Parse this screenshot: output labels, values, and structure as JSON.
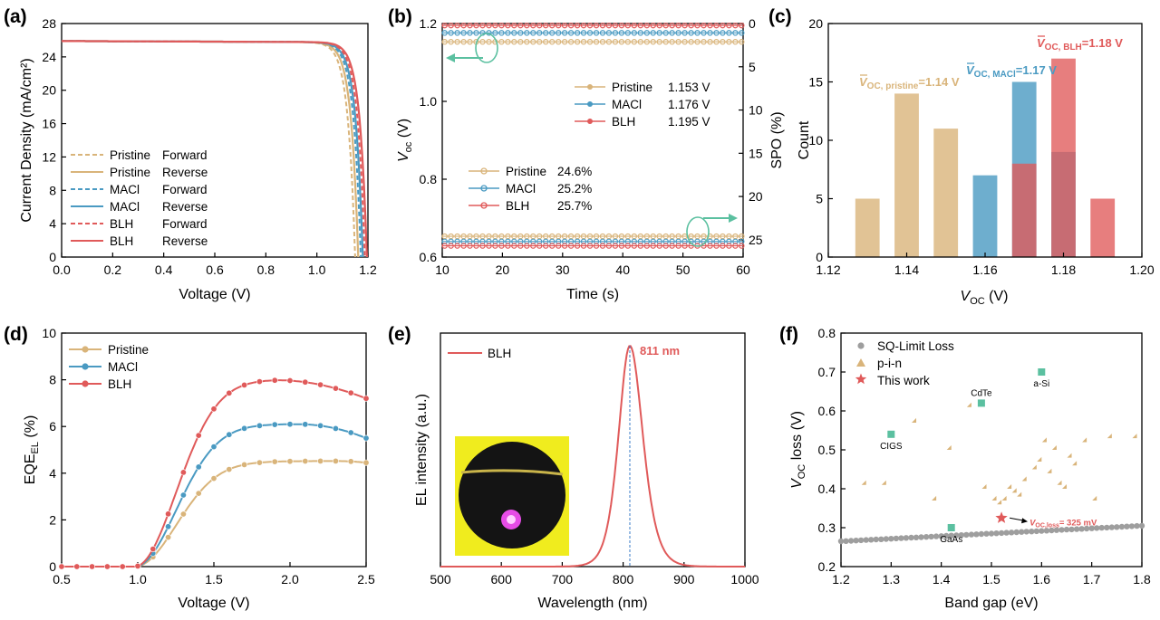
{
  "colors": {
    "pristine": "#D9B47A",
    "maci": "#4A9AC2",
    "blh": "#E05A5A",
    "green": "#5BC0A0",
    "gray": "#9E9E9E",
    "inset_bg": "#F0EC1E"
  },
  "panels": [
    {
      "letter": "(a)"
    },
    {
      "letter": "(b)"
    },
    {
      "letter": "(c)"
    },
    {
      "letter": "(d)"
    },
    {
      "letter": "(e)"
    },
    {
      "letter": "(f)"
    }
  ],
  "chart_data": [
    {
      "id": "a",
      "type": "line",
      "xlabel": "Voltage (V)",
      "ylabel": "Current Density (mA/cm²)",
      "xlim": [
        0,
        1.2
      ],
      "ylim": [
        0,
        28
      ],
      "xticks": [
        "0.0",
        "0.2",
        "0.4",
        "0.6",
        "0.8",
        "1.0",
        "1.2"
      ],
      "yticks": [
        "0",
        "4",
        "8",
        "12",
        "16",
        "20",
        "24",
        "28"
      ],
      "legend": "bottom-left",
      "series": [
        {
          "name": "Pristine",
          "scan": "Forward",
          "style": "dashed",
          "color": "#D9B47A",
          "jsc": 25.9,
          "voc": 1.15
        },
        {
          "name": "Pristine",
          "scan": "Reverse",
          "style": "solid",
          "color": "#D9B47A",
          "jsc": 25.9,
          "voc": 1.162
        },
        {
          "name": "MACl",
          "scan": "Forward",
          "style": "dashed",
          "color": "#4A9AC2",
          "jsc": 25.9,
          "voc": 1.172
        },
        {
          "name": "MACl",
          "scan": "Reverse",
          "style": "solid",
          "color": "#4A9AC2",
          "jsc": 25.9,
          "voc": 1.18
        },
        {
          "name": "BLH",
          "scan": "Forward",
          "style": "dashed",
          "color": "#E05A5A",
          "jsc": 25.9,
          "voc": 1.188
        },
        {
          "name": "BLH",
          "scan": "Reverse",
          "style": "solid",
          "color": "#E05A5A",
          "jsc": 25.9,
          "voc": 1.196
        }
      ]
    },
    {
      "id": "b",
      "type": "scatter",
      "xlabel": "Time (s)",
      "ylabel": "V",
      "ylabel_sub": "oc",
      "ylabel_unit": " (V)",
      "y2label": "SPO (%)",
      "xlim": [
        10,
        60
      ],
      "ylim": [
        0.6,
        1.2
      ],
      "y2lim": [
        0,
        27
      ],
      "xticks": [
        "10",
        "20",
        "30",
        "40",
        "50",
        "60"
      ],
      "yticks": [
        "0.6",
        "0.8",
        "1.0",
        "1.2"
      ],
      "y2ticks": [
        "0",
        "5",
        "10",
        "15",
        "20",
        "25"
      ],
      "voc_series": [
        {
          "name": "Pristine",
          "value": 1.153,
          "label": "1.153 V",
          "color": "#D9B47A"
        },
        {
          "name": "MACl",
          "value": 1.176,
          "label": "1.176 V",
          "color": "#4A9AC2"
        },
        {
          "name": "BLH",
          "value": 1.195,
          "label": "1.195 V",
          "color": "#E05A5A"
        }
      ],
      "spo_series": [
        {
          "name": "Pristine",
          "value": 24.6,
          "label": "24.6%",
          "color": "#D9B47A"
        },
        {
          "name": "MACl",
          "value": 25.2,
          "label": "25.2%",
          "color": "#4A9AC2"
        },
        {
          "name": "BLH",
          "value": 25.7,
          "label": "25.7%",
          "color": "#E05A5A"
        }
      ]
    },
    {
      "id": "c",
      "type": "bar",
      "xlabel": "V",
      "xlabel_sub": "OC",
      "xlabel_unit": " (V)",
      "ylabel": "Count",
      "xlim": [
        1.12,
        1.2
      ],
      "ylim": [
        0,
        20
      ],
      "xticks": [
        "1.12",
        "1.14",
        "1.16",
        "1.18",
        "1.20"
      ],
      "yticks": [
        "0",
        "5",
        "10",
        "15",
        "20"
      ],
      "series": [
        {
          "name": "Pristine",
          "color": "#D9B47A",
          "bins": [
            1.13,
            1.14,
            1.15
          ],
          "counts": [
            5,
            14,
            11
          ]
        },
        {
          "name": "MACl",
          "color": "#4A9AC2",
          "bins": [
            1.16,
            1.17,
            1.18
          ],
          "counts": [
            7,
            15,
            9
          ]
        },
        {
          "name": "BLH",
          "color": "#E05A5A",
          "bins": [
            1.17,
            1.18,
            1.19
          ],
          "counts": [
            8,
            17,
            5
          ]
        }
      ],
      "annotations": [
        {
          "main": "V",
          "sub": "OC, pristine",
          "value": "=1.14 V",
          "color": "#D9B47A"
        },
        {
          "main": "V",
          "sub": "OC, MACl",
          "value": "=1.17 V",
          "color": "#4A9AC2"
        },
        {
          "main": "V",
          "sub": "OC, BLH",
          "value": "=1.18 V",
          "color": "#E05A5A"
        }
      ]
    },
    {
      "id": "d",
      "type": "line",
      "xlabel": "Voltage (V)",
      "ylabel": "EQE",
      "ylabel_sub": "EL",
      "ylabel_unit": " (%)",
      "xlim": [
        0.5,
        2.5
      ],
      "ylim": [
        0,
        10
      ],
      "xticks": [
        "0.5",
        "1.0",
        "1.5",
        "2.0",
        "2.5"
      ],
      "yticks": [
        "0",
        "2",
        "4",
        "6",
        "8",
        "10"
      ],
      "legend": "top-left",
      "series": [
        {
          "name": "Pristine",
          "color": "#D9B47A",
          "peak": 4.52,
          "peak_v": 2.3,
          "onset": 0.98,
          "end": 4.45
        },
        {
          "name": "MACl",
          "color": "#4A9AC2",
          "peak": 6.1,
          "peak_v": 2.05,
          "onset": 0.98,
          "end": 5.5
        },
        {
          "name": "BLH",
          "color": "#E05A5A",
          "peak": 8.0,
          "peak_v": 1.88,
          "onset": 0.98,
          "end": 7.2
        }
      ]
    },
    {
      "id": "e",
      "type": "line",
      "xlabel": "Wavelength (nm)",
      "ylabel": "EL intensity (a.u.)",
      "xlim": [
        500,
        1000
      ],
      "xticks": [
        "500",
        "600",
        "700",
        "800",
        "900",
        "1000"
      ],
      "legend": "top-left",
      "series": [
        {
          "name": "BLH",
          "color": "#E05A5A",
          "peak_nm": 811
        }
      ],
      "peak_label": "811 nm"
    },
    {
      "id": "f",
      "type": "scatter",
      "xlabel": "Band gap (eV)",
      "ylabel": "V",
      "ylabel_sub": "OC",
      "ylabel_unit": " loss (V)",
      "xlim": [
        1.2,
        1.8
      ],
      "ylim": [
        0.2,
        0.8
      ],
      "xticks": [
        "1.2",
        "1.3",
        "1.4",
        "1.5",
        "1.6",
        "1.7",
        "1.8"
      ],
      "yticks": [
        "0.2",
        "0.3",
        "0.4",
        "0.5",
        "0.6",
        "0.7",
        "0.8"
      ],
      "legend": "top-left",
      "sq_label": "SQ-Limit Loss",
      "sq_line": {
        "x": [
          1.2,
          1.8
        ],
        "y": [
          0.265,
          0.305
        ]
      },
      "pin_label": "p-i-n",
      "pin_points": [
        [
          1.25,
          0.41
        ],
        [
          1.29,
          0.41
        ],
        [
          1.35,
          0.57
        ],
        [
          1.39,
          0.37
        ],
        [
          1.42,
          0.5
        ],
        [
          1.46,
          0.61
        ],
        [
          1.49,
          0.4
        ],
        [
          1.51,
          0.37
        ],
        [
          1.52,
          0.36
        ],
        [
          1.53,
          0.37
        ],
        [
          1.54,
          0.4
        ],
        [
          1.55,
          0.39
        ],
        [
          1.56,
          0.38
        ],
        [
          1.57,
          0.42
        ],
        [
          1.59,
          0.45
        ],
        [
          1.6,
          0.47
        ],
        [
          1.61,
          0.52
        ],
        [
          1.62,
          0.44
        ],
        [
          1.63,
          0.5
        ],
        [
          1.64,
          0.41
        ],
        [
          1.65,
          0.4
        ],
        [
          1.66,
          0.48
        ],
        [
          1.67,
          0.46
        ],
        [
          1.69,
          0.52
        ],
        [
          1.71,
          0.37
        ],
        [
          1.74,
          0.53
        ],
        [
          1.79,
          0.53
        ]
      ],
      "this_work_label": "This work",
      "this_work": [
        1.52,
        0.325
      ],
      "this_work_annotation": {
        "main": "V",
        "sub": "OC,loss",
        "value": "= 325 mV"
      },
      "references": [
        {
          "name": "CIGS",
          "x": 1.3,
          "y": 0.54
        },
        {
          "name": "CdTe",
          "x": 1.48,
          "y": 0.62
        },
        {
          "name": "a-Si",
          "x": 1.6,
          "y": 0.7
        },
        {
          "name": "GaAs",
          "x": 1.42,
          "y": 0.3
        }
      ]
    }
  ]
}
